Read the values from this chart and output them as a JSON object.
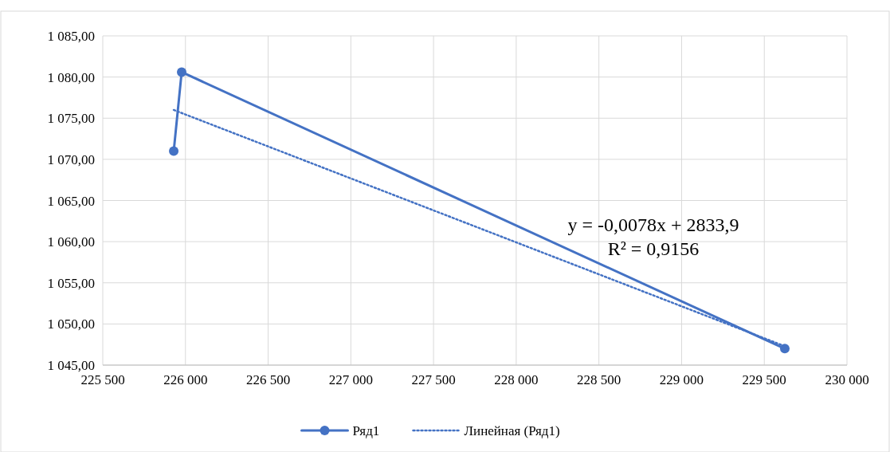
{
  "chart_data": {
    "type": "line",
    "xlim": [
      225500,
      230000
    ],
    "xticks": [
      {
        "value": 225500,
        "label": "225 500"
      },
      {
        "value": 226000,
        "label": "226 000"
      },
      {
        "value": 226500,
        "label": "226 500"
      },
      {
        "value": 227000,
        "label": "227 000"
      },
      {
        "value": 227500,
        "label": "227 500"
      },
      {
        "value": 228000,
        "label": "228 000"
      },
      {
        "value": 228500,
        "label": "228 500"
      },
      {
        "value": 229000,
        "label": "229 000"
      },
      {
        "value": 229500,
        "label": "229 500"
      },
      {
        "value": 230000,
        "label": "230 000"
      }
    ],
    "ylim": [
      1045,
      1085
    ],
    "yticks": [
      {
        "value": 1045,
        "label": "1 045,00"
      },
      {
        "value": 1050,
        "label": "1 050,00"
      },
      {
        "value": 1055,
        "label": "1 055,00"
      },
      {
        "value": 1060,
        "label": "1 060,00"
      },
      {
        "value": 1065,
        "label": "1 065,00"
      },
      {
        "value": 1070,
        "label": "1 070,00"
      },
      {
        "value": 1075,
        "label": "1 075,00"
      },
      {
        "value": 1080,
        "label": "1 080,00"
      },
      {
        "value": 1085,
        "label": "1 085,00"
      }
    ],
    "grid": true,
    "legend": "bottom",
    "series": [
      {
        "name": "Ряд1",
        "color": "#4472c4",
        "x": [
          225929,
          225977,
          229624
        ],
        "values": [
          1071.0,
          1080.6,
          1047.0
        ],
        "marker": "circle",
        "line_style": "solid"
      },
      {
        "name": "Линейная (Ряд1)",
        "color": "#4472c4",
        "x": [
          225929,
          229624
        ],
        "values": [
          1076.0,
          1047.3
        ],
        "marker": "none",
        "line_style": "dotted"
      }
    ],
    "annotations": [
      "y = -0,0078x + 2833,9",
      "R² = 0,9156"
    ]
  }
}
